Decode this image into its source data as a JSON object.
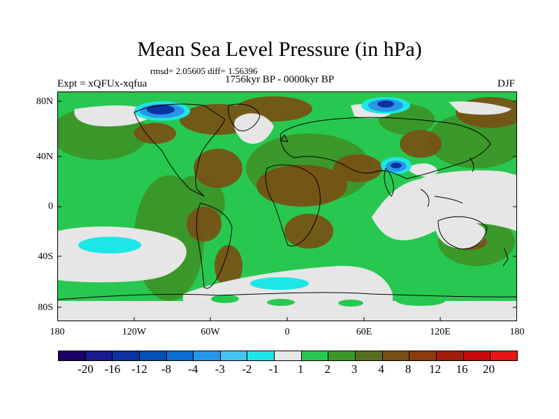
{
  "title": "Mean Sea Level Pressure (in hPa)",
  "stats": "rmsd= 2.05605 diff= 1.56396",
  "expt": "Expt = xQFUx-xqfua",
  "period": "1756kyr BP - 0000kyr BP",
  "season": "DJF",
  "lat_labels": [
    "80N",
    "40N",
    "0",
    "40S",
    "80S"
  ],
  "lon_labels": [
    "180",
    "120W",
    "60W",
    "0",
    "60E",
    "120E",
    "180"
  ],
  "colorbar": {
    "colors": [
      "#1a0064",
      "#1a1a8c",
      "#0a32a0",
      "#0050b4",
      "#0a6ed2",
      "#2896e6",
      "#46c3f0",
      "#1ee6e6",
      "#e6e6e6",
      "#28c850",
      "#3c9628",
      "#556e1e",
      "#785014",
      "#8c3c0a",
      "#a01e0a",
      "#c80a0a",
      "#e61414"
    ],
    "labels": [
      "-20",
      "-16",
      "-12",
      "-8",
      "-4",
      "-3",
      "-2",
      "-1",
      "1",
      "2",
      "3",
      "4",
      "8",
      "12",
      "16",
      "20"
    ]
  },
  "map_colors": {
    "ocean_base": "#28c850",
    "positive_mid": "#3c9628",
    "positive_high": "#556e1e",
    "brown": "#785014",
    "neutral": "#e6e6e6",
    "light_blue": "#1ee6e6",
    "mid_blue": "#2896e6",
    "dark_blue": "#0a32a0"
  }
}
